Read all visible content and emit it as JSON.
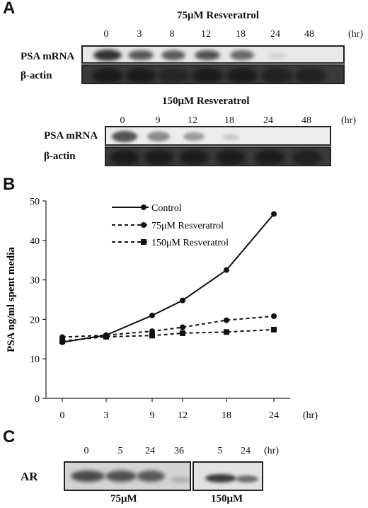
{
  "panelA": {
    "letter": "A",
    "blot1": {
      "title": "75μM Resveratrol",
      "times": [
        "0",
        "3",
        "8",
        "12",
        "18",
        "24",
        "48"
      ],
      "unit": "(hr)",
      "row1": "PSA mRNA",
      "row2": "β-actin"
    },
    "blot2": {
      "title": "150μM Resveratrol",
      "times": [
        "0",
        "9",
        "12",
        "18",
        "24",
        "48"
      ],
      "unit": "(hr)",
      "row1": "PSA mRNA",
      "row2": "β-actin"
    }
  },
  "panelB": {
    "letter": "B"
  },
  "chart_data": {
    "type": "line",
    "ylabel": "PSA ng/ml spent media",
    "xunit": "(hr)",
    "categories": [
      "0",
      "3",
      "9",
      "12",
      "18",
      "24"
    ],
    "ylim": [
      0,
      50
    ],
    "yticks": [
      0,
      10,
      20,
      30,
      40,
      50
    ],
    "legend_position": "top-center",
    "series": [
      {
        "name": "Control",
        "values": [
          14.2,
          16.0,
          21.0,
          24.8,
          32.5,
          46.7
        ],
        "marker": "circle",
        "dash": "solid"
      },
      {
        "name": "75μM Resveratrol",
        "values": [
          15.5,
          16.0,
          17.0,
          18.0,
          19.8,
          20.8
        ],
        "marker": "circle",
        "dash": "dashed"
      },
      {
        "name": "150μM Resveratrol",
        "values": [
          14.5,
          15.6,
          15.9,
          16.5,
          16.8,
          17.4
        ],
        "marker": "square",
        "dash": "dashed"
      }
    ]
  },
  "panelC": {
    "letter": "C",
    "row_label": "AR",
    "times_left": [
      "0",
      "5",
      "24",
      "36"
    ],
    "times_right": [
      "5",
      "24"
    ],
    "unit": "(hr)",
    "label_left": "75μM",
    "label_right": "150μM"
  }
}
